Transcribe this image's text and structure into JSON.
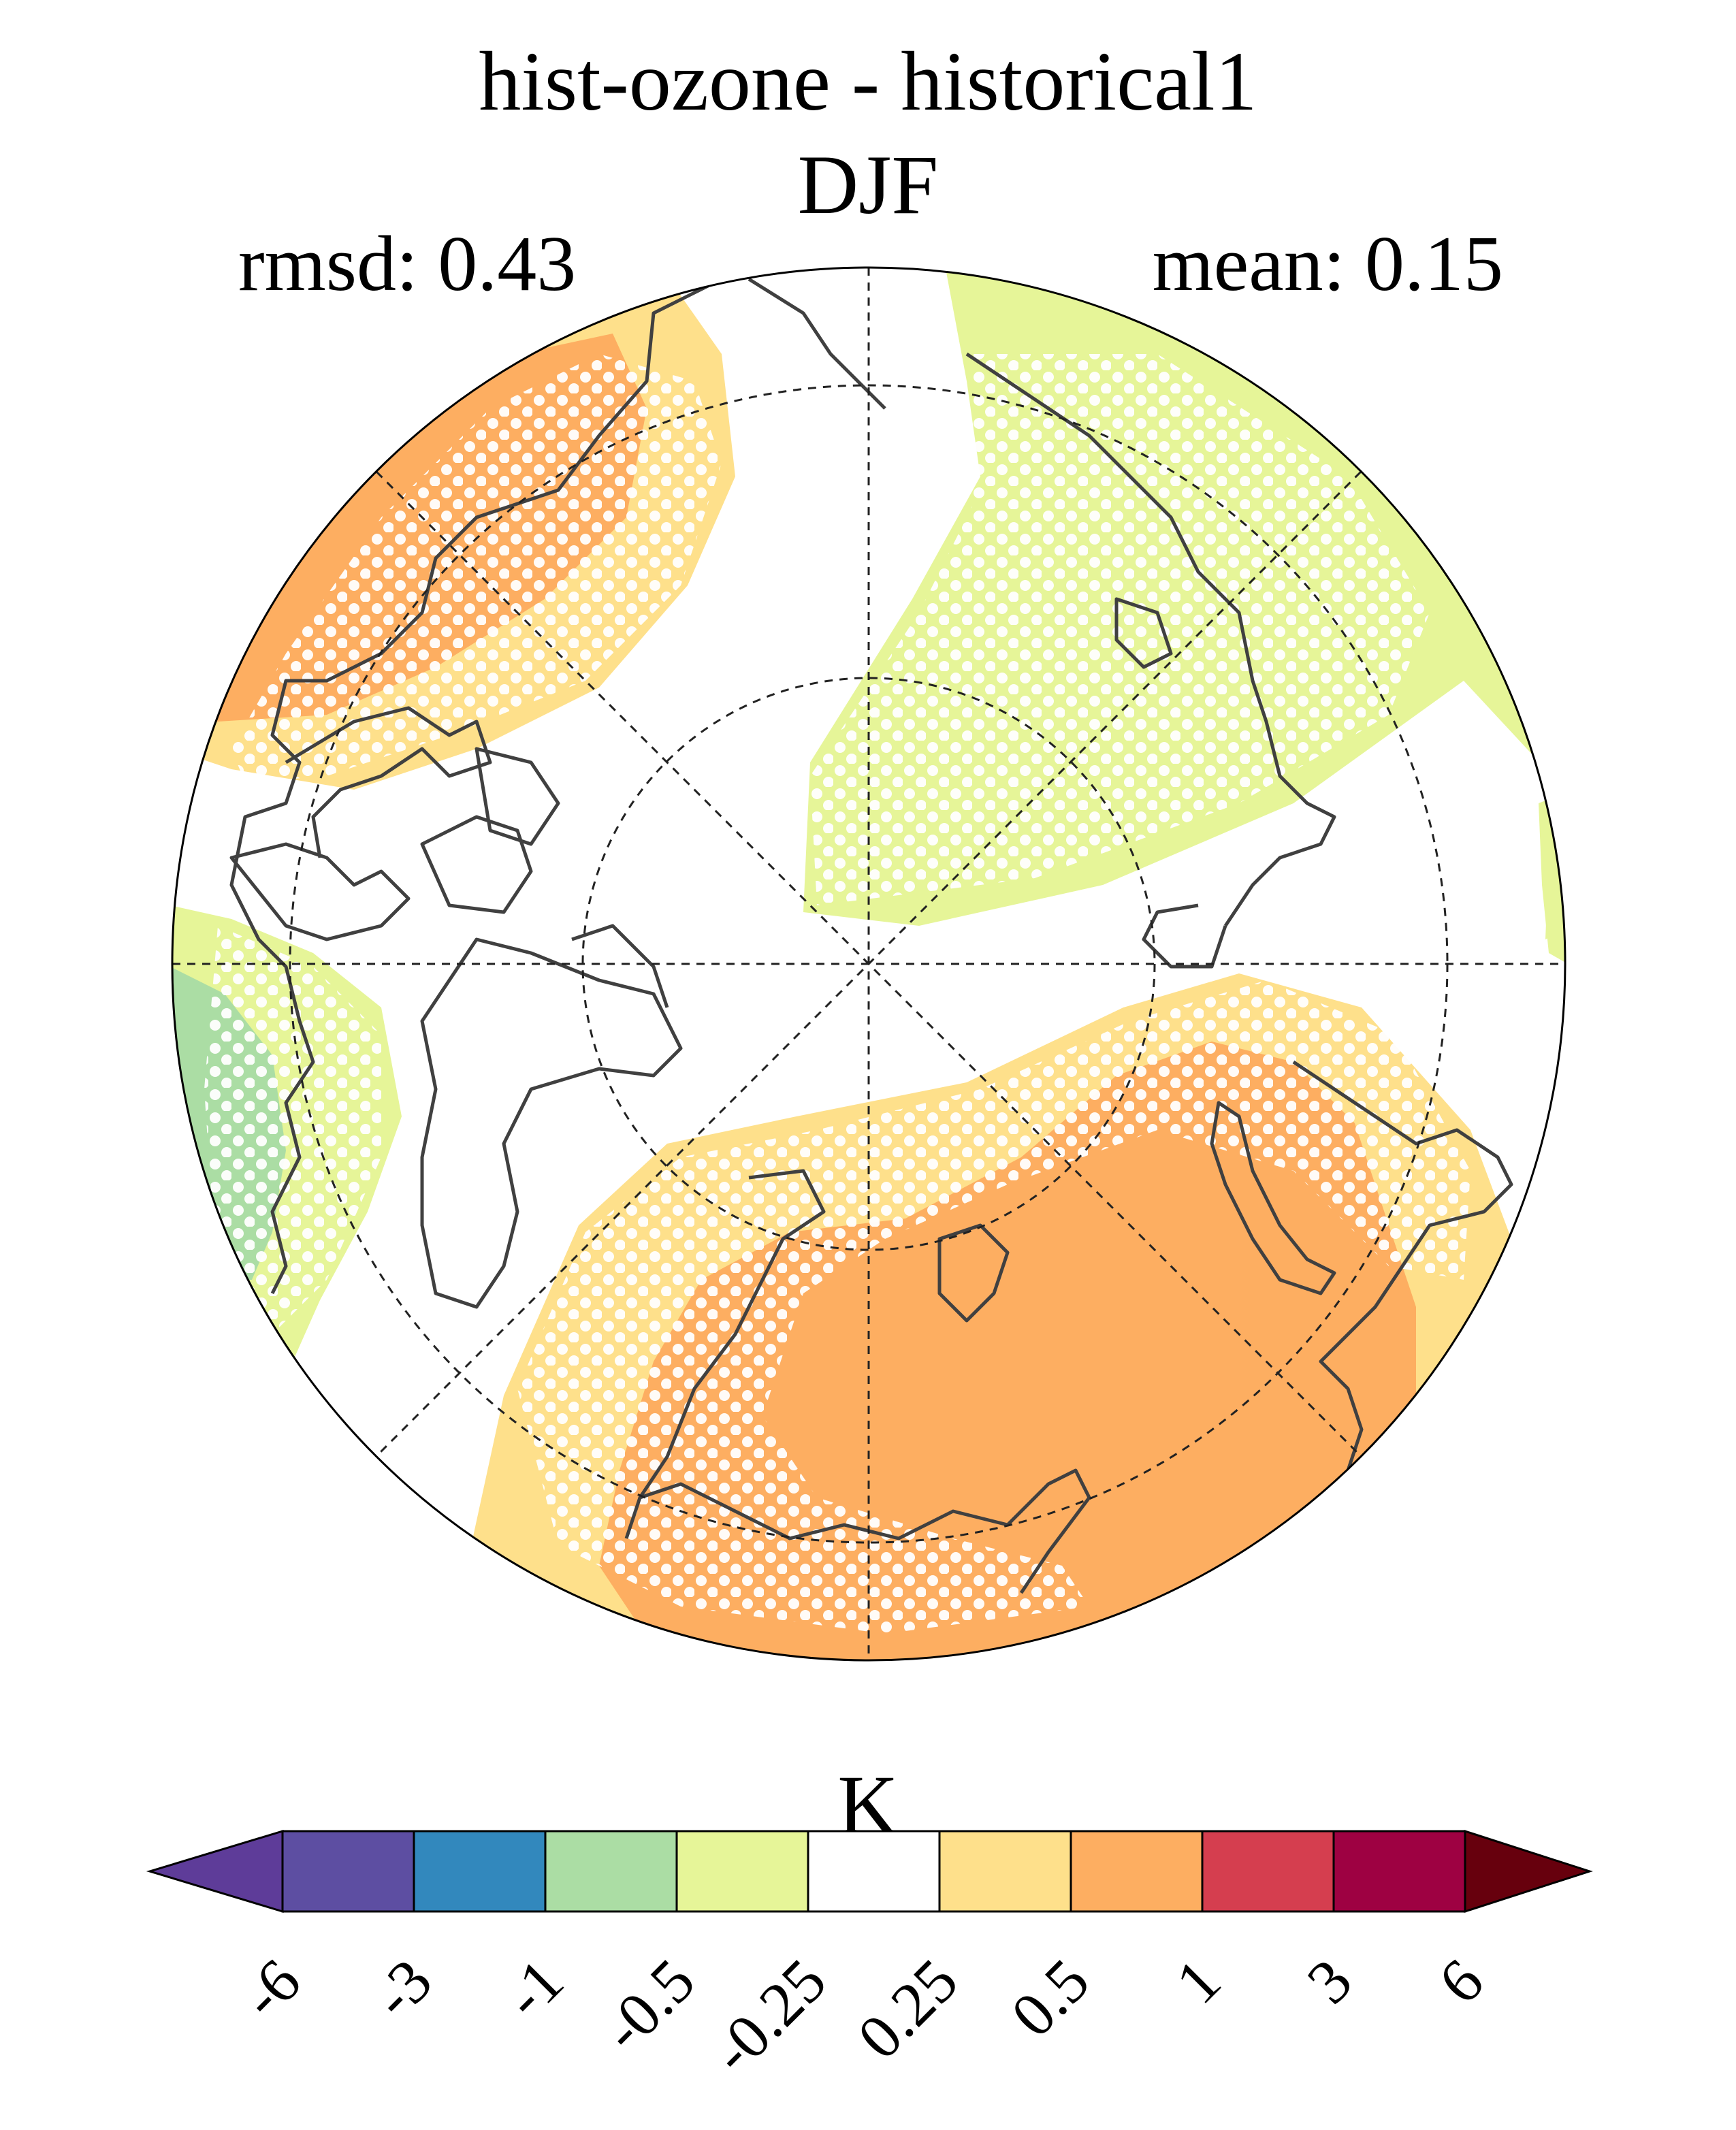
{
  "map": {
    "title": "hist-ozone - historical1",
    "season": "DJF",
    "rmsd_label": "rmsd: 0.43",
    "mean_label": "mean: 0.15",
    "projection": "north polar stereographic",
    "stippling": "white dots indicate significance",
    "fill_regions": [
      {
        "name": "north-america-orange",
        "level": "0.5 to 1"
      },
      {
        "name": "eurasia-orange",
        "level": "0.5 to 1"
      },
      {
        "name": "north-atlantic-yellow",
        "level": "0.25 to 0.5"
      },
      {
        "name": "pacific-green",
        "level": "-0.5 to -0.25"
      },
      {
        "name": "atlantic-green",
        "level": "-1 to -0.5"
      }
    ]
  },
  "colorbar": {
    "unit": "K",
    "colors": [
      "#5e3c99",
      "#5d4ea2",
      "#3288bd",
      "#abdda4",
      "#e6f598",
      "#ffffff",
      "#fee08b",
      "#fdae61",
      "#d53e4f",
      "#9e0142",
      "#67000d"
    ],
    "ticks": [
      "-6",
      "-3",
      "-1",
      "-0.5",
      "-0.25",
      "0.25",
      "0.5",
      "1",
      "3",
      "6"
    ]
  }
}
